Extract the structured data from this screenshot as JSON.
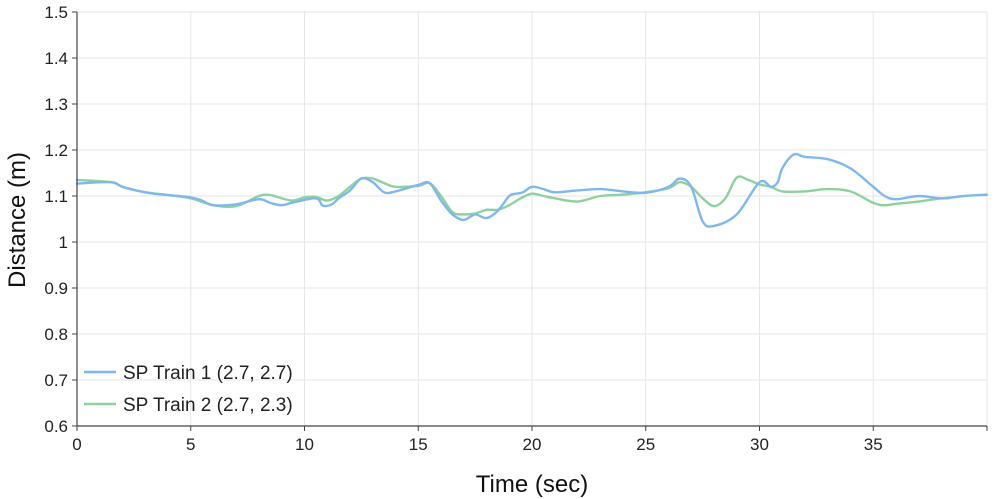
{
  "chart_data": {
    "type": "line",
    "title": "",
    "xlabel": "Time (sec)",
    "ylabel": "Distance (m)",
    "xlim": [
      0,
      40
    ],
    "ylim": [
      0.6,
      1.5
    ],
    "xticks": [
      0,
      5,
      10,
      15,
      20,
      25,
      30,
      35
    ],
    "xtick_labels": [
      "0",
      "5",
      "10",
      "15",
      "20",
      "25",
      "30",
      "35"
    ],
    "yticks": [
      0.6,
      0.7,
      0.8,
      0.9,
      1.0,
      1.1,
      1.2,
      1.3,
      1.4,
      1.5
    ],
    "ytick_labels": [
      "0.6",
      "0.7",
      "0.8",
      "0.9",
      "1",
      "1.1",
      "1.2",
      "1.3",
      "1.4",
      "1.5"
    ],
    "grid": true,
    "legend_position": "bottom-left",
    "series": [
      {
        "name": "SP Train 1 (2.7, 2.7)",
        "color": "#7fb8ef",
        "x": [
          0,
          1.5,
          2,
          3,
          4,
          5,
          5.5,
          6,
          7,
          8,
          8.5,
          9,
          9.5,
          10.5,
          10.8,
          11.2,
          11.5,
          12,
          12.5,
          13,
          13.5,
          14,
          15,
          15.5,
          16,
          16.5,
          17,
          17.5,
          18,
          18.5,
          19,
          19.3,
          19.6,
          20,
          20.5,
          21,
          22,
          23,
          24,
          25,
          26,
          26.5,
          27,
          27.5,
          28,
          29,
          30,
          30.5,
          30.8,
          31,
          31.5,
          32,
          33,
          34,
          35,
          35.5,
          36,
          37,
          38,
          39,
          40
        ],
        "y": [
          1.127,
          1.13,
          1.12,
          1.108,
          1.102,
          1.097,
          1.09,
          1.08,
          1.082,
          1.093,
          1.085,
          1.08,
          1.086,
          1.095,
          1.079,
          1.082,
          1.095,
          1.112,
          1.138,
          1.13,
          1.108,
          1.11,
          1.124,
          1.128,
          1.09,
          1.06,
          1.048,
          1.06,
          1.052,
          1.068,
          1.1,
          1.105,
          1.108,
          1.12,
          1.115,
          1.108,
          1.112,
          1.115,
          1.11,
          1.107,
          1.12,
          1.138,
          1.12,
          1.045,
          1.035,
          1.06,
          1.13,
          1.12,
          1.13,
          1.16,
          1.19,
          1.185,
          1.18,
          1.16,
          1.12,
          1.1,
          1.093,
          1.1,
          1.095,
          1.1,
          1.103
        ]
      },
      {
        "name": "SP Train 2 (2.7, 2.3)",
        "color": "#8fd19e",
        "x": [
          0,
          1.5,
          2,
          3,
          4,
          5,
          6,
          7,
          8,
          8.5,
          9,
          9.5,
          10,
          10.5,
          11,
          11.5,
          12,
          12.5,
          13,
          13.5,
          14,
          15,
          15.5,
          16,
          16.5,
          17,
          17.5,
          18,
          18.5,
          19,
          19.5,
          20,
          20.5,
          21,
          22,
          23,
          24,
          25,
          26,
          26.5,
          27,
          27.5,
          28,
          28.5,
          29,
          29.5,
          30,
          30.5,
          31,
          32,
          33,
          34,
          35,
          35.5,
          36,
          37,
          38,
          38.3
        ],
        "y": [
          1.135,
          1.13,
          1.12,
          1.108,
          1.102,
          1.095,
          1.08,
          1.078,
          1.1,
          1.102,
          1.095,
          1.09,
          1.097,
          1.098,
          1.09,
          1.1,
          1.12,
          1.138,
          1.138,
          1.128,
          1.12,
          1.122,
          1.128,
          1.1,
          1.065,
          1.06,
          1.062,
          1.07,
          1.07,
          1.08,
          1.095,
          1.105,
          1.1,
          1.095,
          1.088,
          1.1,
          1.103,
          1.108,
          1.117,
          1.13,
          1.12,
          1.095,
          1.078,
          1.095,
          1.14,
          1.135,
          1.125,
          1.12,
          1.11,
          1.11,
          1.115,
          1.11,
          1.085,
          1.08,
          1.083,
          1.088,
          1.095,
          1.095
        ]
      }
    ]
  }
}
